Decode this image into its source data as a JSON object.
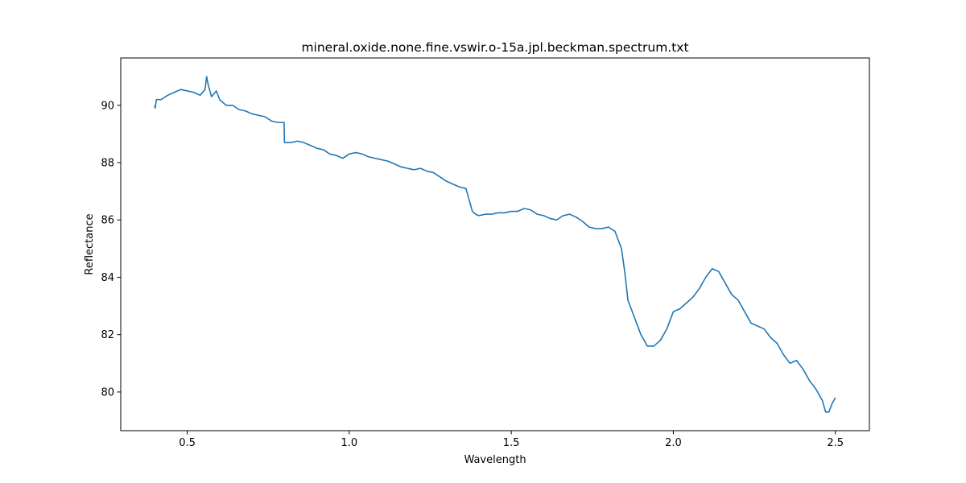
{
  "chart_data": {
    "type": "line",
    "title": "mineral.oxide.none.fine.vswir.o-15a.jpl.beckman.spectrum.txt",
    "xlabel": "Wavelength",
    "ylabel": "Reflectance",
    "xlim": [
      0.295,
      2.605
    ],
    "ylim": [
      78.65,
      91.65
    ],
    "xticks": [
      0.5,
      1.0,
      1.5,
      2.0,
      2.5
    ],
    "xtick_labels": [
      "0.5",
      "1.0",
      "1.5",
      "2.0",
      "2.5"
    ],
    "yticks": [
      80,
      82,
      84,
      86,
      88,
      90
    ],
    "ytick_labels": [
      "80",
      "82",
      "84",
      "86",
      "88",
      "90"
    ],
    "grid": false,
    "legend": "none",
    "line_color": "#1f77b4",
    "series": [
      {
        "x": [
          0.4,
          0.401,
          0.405,
          0.42,
          0.44,
          0.46,
          0.48,
          0.5,
          0.52,
          0.54,
          0.555,
          0.56,
          0.565,
          0.575,
          0.59,
          0.6,
          0.62,
          0.64,
          0.66,
          0.68,
          0.7,
          0.72,
          0.74,
          0.76,
          0.78,
          0.799,
          0.8,
          0.82,
          0.84,
          0.86,
          0.88,
          0.9,
          0.92,
          0.94,
          0.96,
          0.98,
          1.0,
          1.02,
          1.04,
          1.06,
          1.08,
          1.1,
          1.12,
          1.14,
          1.16,
          1.18,
          1.2,
          1.22,
          1.24,
          1.26,
          1.28,
          1.3,
          1.32,
          1.34,
          1.36,
          1.37,
          1.38,
          1.39,
          1.4,
          1.42,
          1.44,
          1.46,
          1.48,
          1.5,
          1.52,
          1.54,
          1.56,
          1.58,
          1.6,
          1.62,
          1.64,
          1.66,
          1.68,
          1.7,
          1.72,
          1.74,
          1.76,
          1.78,
          1.8,
          1.82,
          1.84,
          1.85,
          1.86,
          1.87,
          1.88,
          1.9,
          1.92,
          1.94,
          1.96,
          1.98,
          2.0,
          2.02,
          2.04,
          2.06,
          2.08,
          2.1,
          2.12,
          2.14,
          2.16,
          2.18,
          2.2,
          2.22,
          2.24,
          2.26,
          2.28,
          2.3,
          2.32,
          2.34,
          2.36,
          2.38,
          2.4,
          2.42,
          2.44,
          2.46,
          2.47,
          2.48,
          2.49,
          2.5
        ],
        "y": [
          90.0,
          89.9,
          90.2,
          90.2,
          90.35,
          90.45,
          90.55,
          90.5,
          90.45,
          90.35,
          90.55,
          91.0,
          90.7,
          90.3,
          90.5,
          90.2,
          90.0,
          90.0,
          89.85,
          89.8,
          89.7,
          89.65,
          89.6,
          89.45,
          89.4,
          89.4,
          88.7,
          88.7,
          88.75,
          88.7,
          88.6,
          88.5,
          88.45,
          88.3,
          88.25,
          88.15,
          88.3,
          88.35,
          88.3,
          88.2,
          88.15,
          88.1,
          88.05,
          87.95,
          87.85,
          87.8,
          87.75,
          87.8,
          87.7,
          87.65,
          87.5,
          87.35,
          87.25,
          87.15,
          87.1,
          86.7,
          86.3,
          86.2,
          86.15,
          86.2,
          86.2,
          86.25,
          86.25,
          86.3,
          86.3,
          86.4,
          86.35,
          86.2,
          86.15,
          86.05,
          86.0,
          86.15,
          86.2,
          86.1,
          85.95,
          85.75,
          85.7,
          85.7,
          85.75,
          85.6,
          85.0,
          84.2,
          83.2,
          82.9,
          82.6,
          82.0,
          81.6,
          81.6,
          81.8,
          82.2,
          82.8,
          82.9,
          83.1,
          83.3,
          83.6,
          84.0,
          84.3,
          84.2,
          83.8,
          83.4,
          83.2,
          82.8,
          82.4,
          82.3,
          82.2,
          81.9,
          81.7,
          81.3,
          81.0,
          81.1,
          80.8,
          80.4,
          80.1,
          79.7,
          79.3,
          79.3,
          79.6,
          79.8
        ]
      }
    ]
  }
}
